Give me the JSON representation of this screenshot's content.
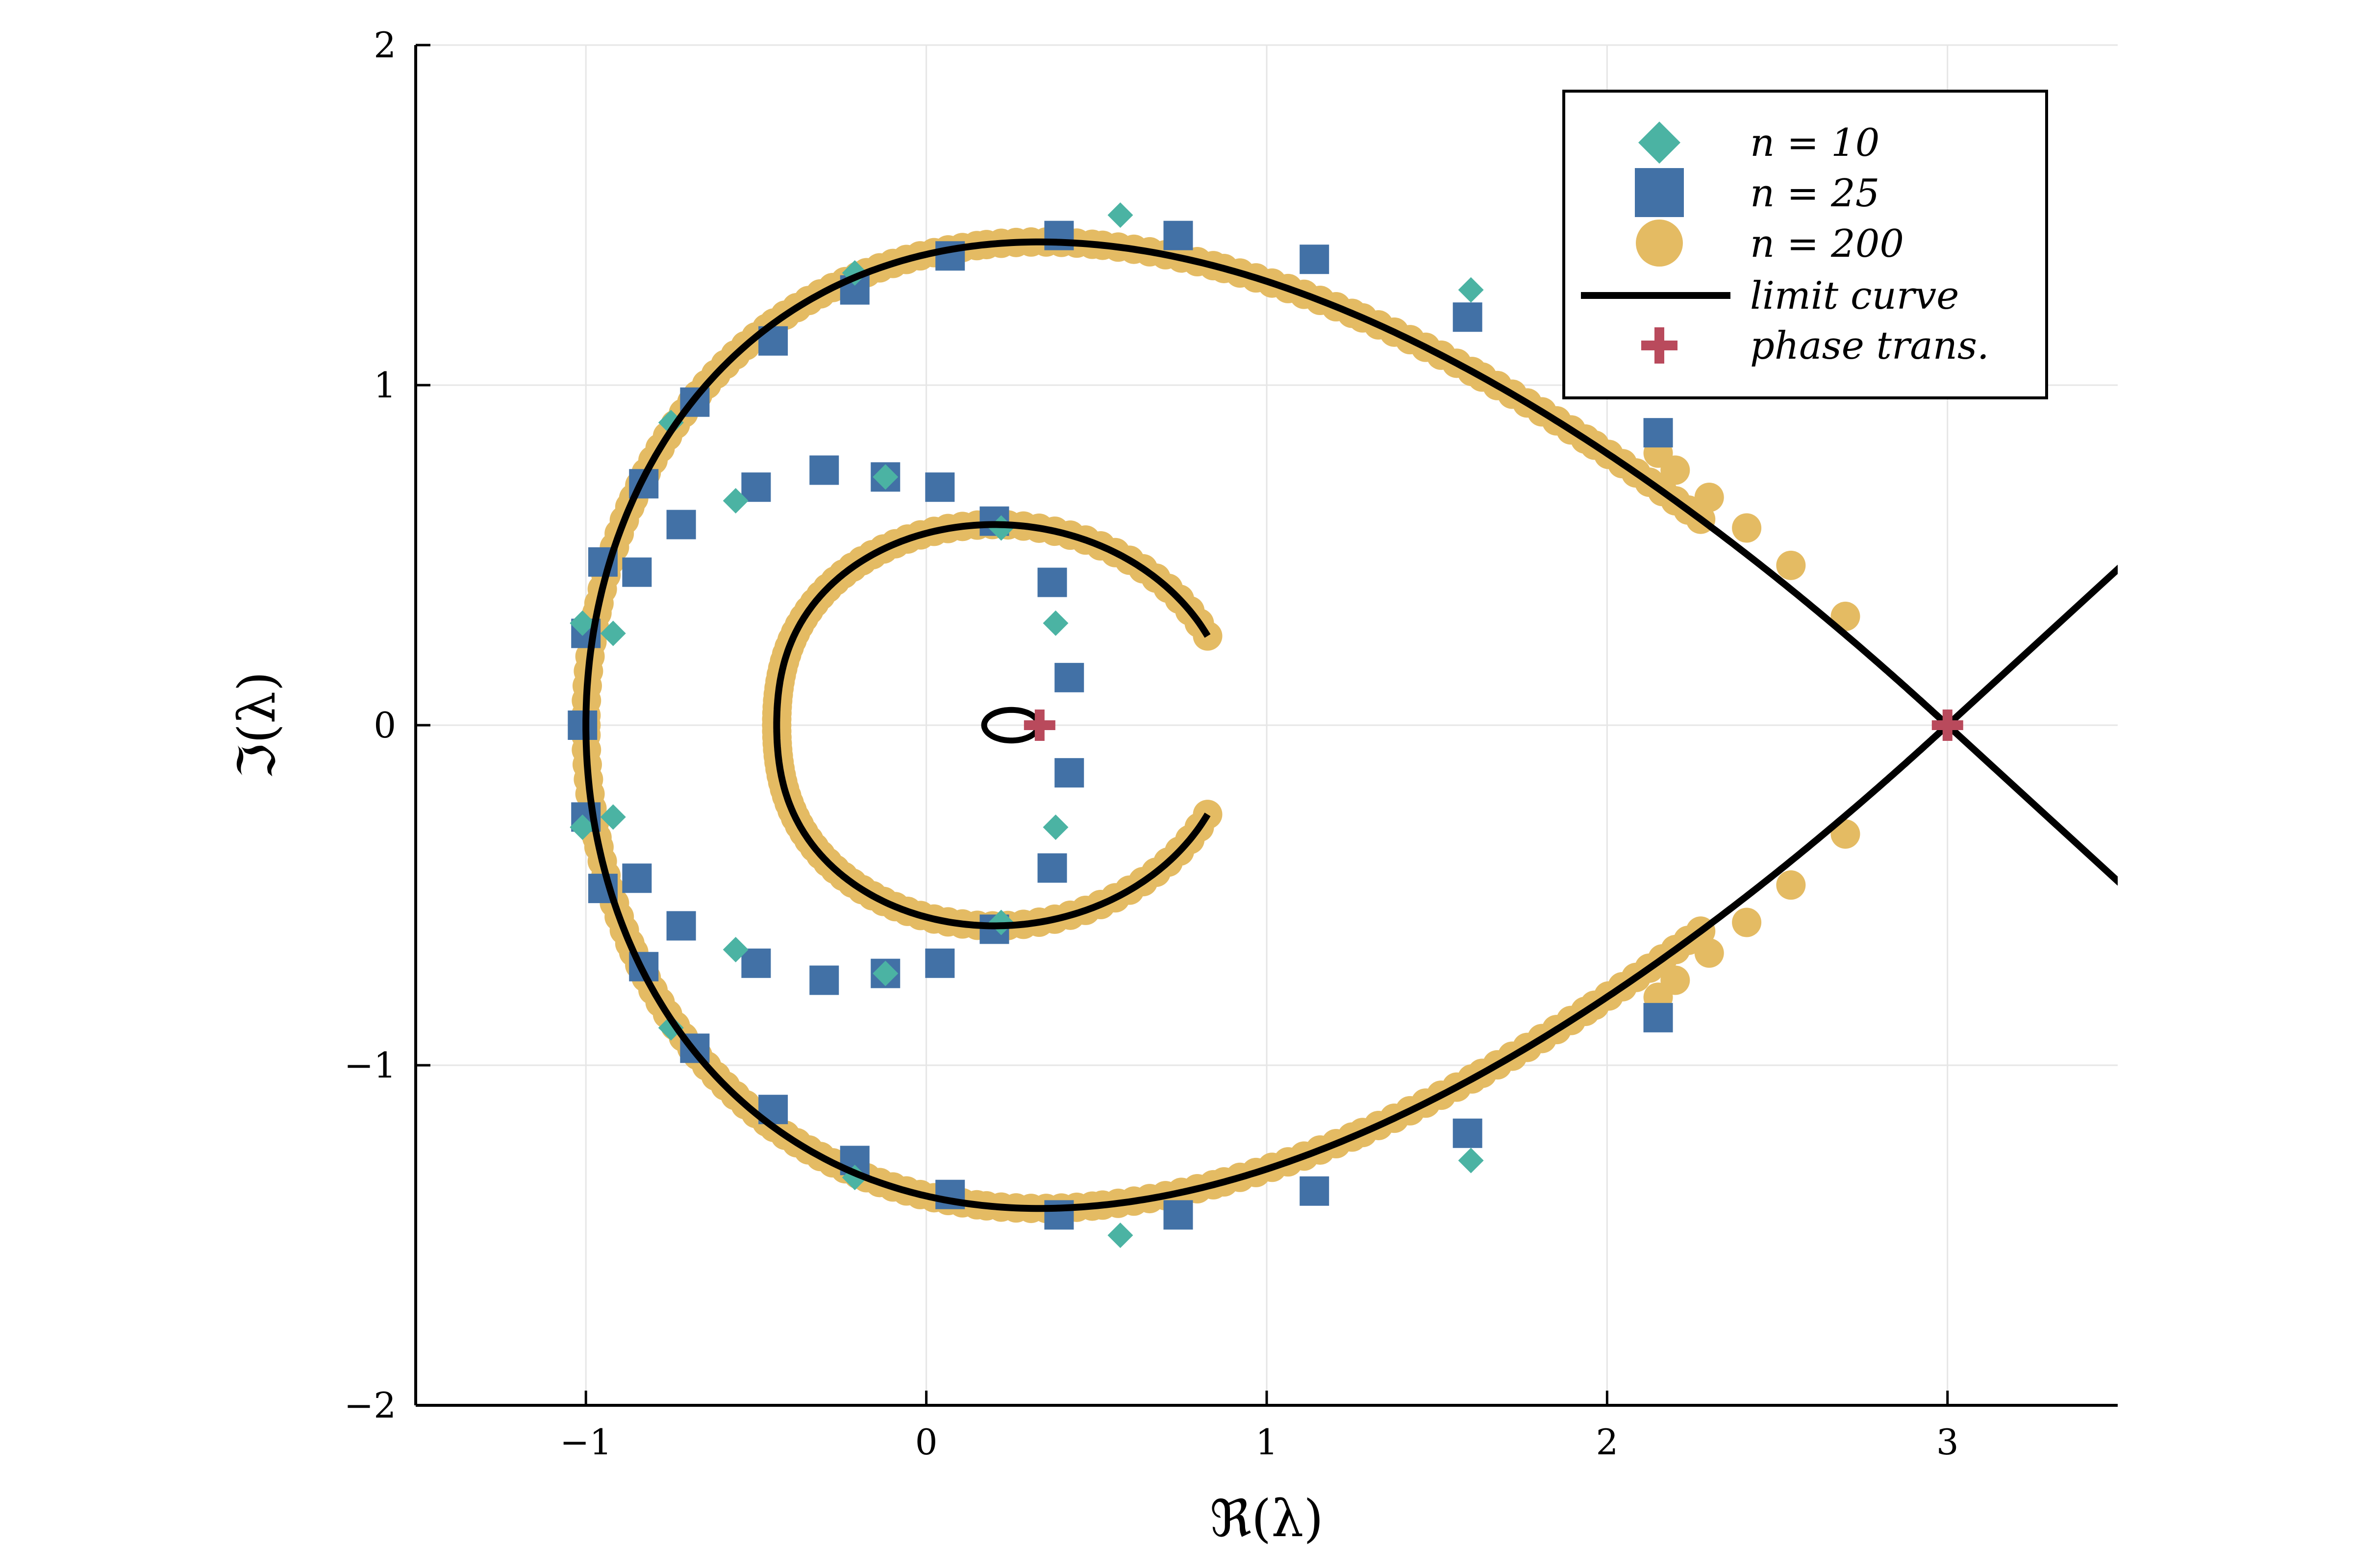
{
  "chart_data": {
    "type": "scatter",
    "title": "",
    "xlabel": "ℜ(λ)",
    "ylabel": "ℑ(λ)",
    "xlim": [
      -1.5,
      3.5
    ],
    "ylim": [
      -2,
      2
    ],
    "xticks": [
      -1,
      0,
      1,
      2,
      3
    ],
    "yticks": [
      -2,
      -1,
      0,
      1,
      2
    ],
    "xtick_labels": [
      "−1",
      "0",
      "1",
      "2",
      "3"
    ],
    "ytick_labels": [
      "−2",
      "−1",
      "0",
      "1",
      "2"
    ],
    "grid": true,
    "legend_position": "top-right",
    "series": [
      {
        "name": "n = 10",
        "marker": "diamond",
        "color": "#4bb3a3",
        "points": [
          [
            -1.01,
            0.3
          ],
          [
            -0.92,
            0.27
          ],
          [
            -0.75,
            0.89
          ],
          [
            -0.56,
            0.66
          ],
          [
            -0.21,
            1.33
          ],
          [
            -0.12,
            0.73
          ],
          [
            0.22,
            0.58
          ],
          [
            0.38,
            0.3
          ],
          [
            0.57,
            1.5
          ],
          [
            1.6,
            1.28
          ],
          [
            -1.01,
            -0.3
          ],
          [
            -0.92,
            -0.27
          ],
          [
            -0.75,
            -0.89
          ],
          [
            -0.56,
            -0.66
          ],
          [
            -0.21,
            -1.33
          ],
          [
            -0.12,
            -0.73
          ],
          [
            0.22,
            -0.58
          ],
          [
            0.38,
            -0.3
          ],
          [
            0.57,
            -1.5
          ],
          [
            1.6,
            -1.28
          ]
        ]
      },
      {
        "name": "n = 25",
        "marker": "square",
        "color": "#4271a6",
        "points": [
          [
            -1.01,
            0.0
          ],
          [
            -1.0,
            0.27
          ],
          [
            -0.95,
            0.48
          ],
          [
            -0.85,
            0.45
          ],
          [
            -0.83,
            0.71
          ],
          [
            -0.68,
            0.95
          ],
          [
            -0.72,
            0.59
          ],
          [
            -0.5,
            0.7
          ],
          [
            -0.45,
            1.13
          ],
          [
            -0.3,
            0.75
          ],
          [
            -0.21,
            1.28
          ],
          [
            -0.12,
            0.73
          ],
          [
            0.04,
            0.7
          ],
          [
            0.07,
            1.38
          ],
          [
            0.2,
            0.6
          ],
          [
            0.37,
            0.42
          ],
          [
            0.39,
            1.44
          ],
          [
            0.74,
            1.44
          ],
          [
            1.14,
            1.37
          ],
          [
            1.59,
            1.2
          ],
          [
            2.15,
            0.86
          ],
          [
            0.42,
            0.14
          ],
          [
            -1.0,
            -0.27
          ],
          [
            -0.95,
            -0.48
          ],
          [
            -0.85,
            -0.45
          ],
          [
            -0.83,
            -0.71
          ],
          [
            -0.68,
            -0.95
          ],
          [
            -0.72,
            -0.59
          ],
          [
            -0.5,
            -0.7
          ],
          [
            -0.45,
            -1.13
          ],
          [
            -0.3,
            -0.75
          ],
          [
            -0.21,
            -1.28
          ],
          [
            -0.12,
            -0.73
          ],
          [
            0.04,
            -0.7
          ],
          [
            0.07,
            -1.38
          ],
          [
            0.2,
            -0.6
          ],
          [
            0.37,
            -0.42
          ],
          [
            0.39,
            -1.44
          ],
          [
            0.74,
            -1.44
          ],
          [
            1.14,
            -1.37
          ],
          [
            1.59,
            -1.2
          ],
          [
            2.15,
            -0.86
          ],
          [
            0.42,
            -0.14
          ]
        ]
      },
      {
        "name": "n = 200",
        "marker": "circle",
        "color": "#e4bb63",
        "description": "dense points along both branches of the limit curve",
        "outer_extra_points": [
          [
            2.15,
            0.8
          ],
          [
            2.2,
            0.75
          ],
          [
            2.3,
            0.67
          ],
          [
            2.41,
            0.58
          ],
          [
            2.54,
            0.47
          ],
          [
            2.7,
            0.32
          ],
          [
            2.15,
            -0.8
          ],
          [
            2.2,
            -0.75
          ],
          [
            2.3,
            -0.67
          ],
          [
            2.41,
            -0.58
          ],
          [
            2.54,
            -0.47
          ],
          [
            2.7,
            -0.32
          ]
        ]
      },
      {
        "name": "limit curve",
        "marker": "line",
        "color": "#000000"
      },
      {
        "name": "phase trans.",
        "marker": "cross",
        "color": "#b94a5c",
        "points": [
          [
            0.333,
            0
          ],
          [
            3.0,
            0
          ]
        ]
      }
    ]
  },
  "legend": {
    "entries": [
      "n = 10",
      "n = 25",
      "n = 200",
      "limit curve",
      "phase trans."
    ]
  }
}
